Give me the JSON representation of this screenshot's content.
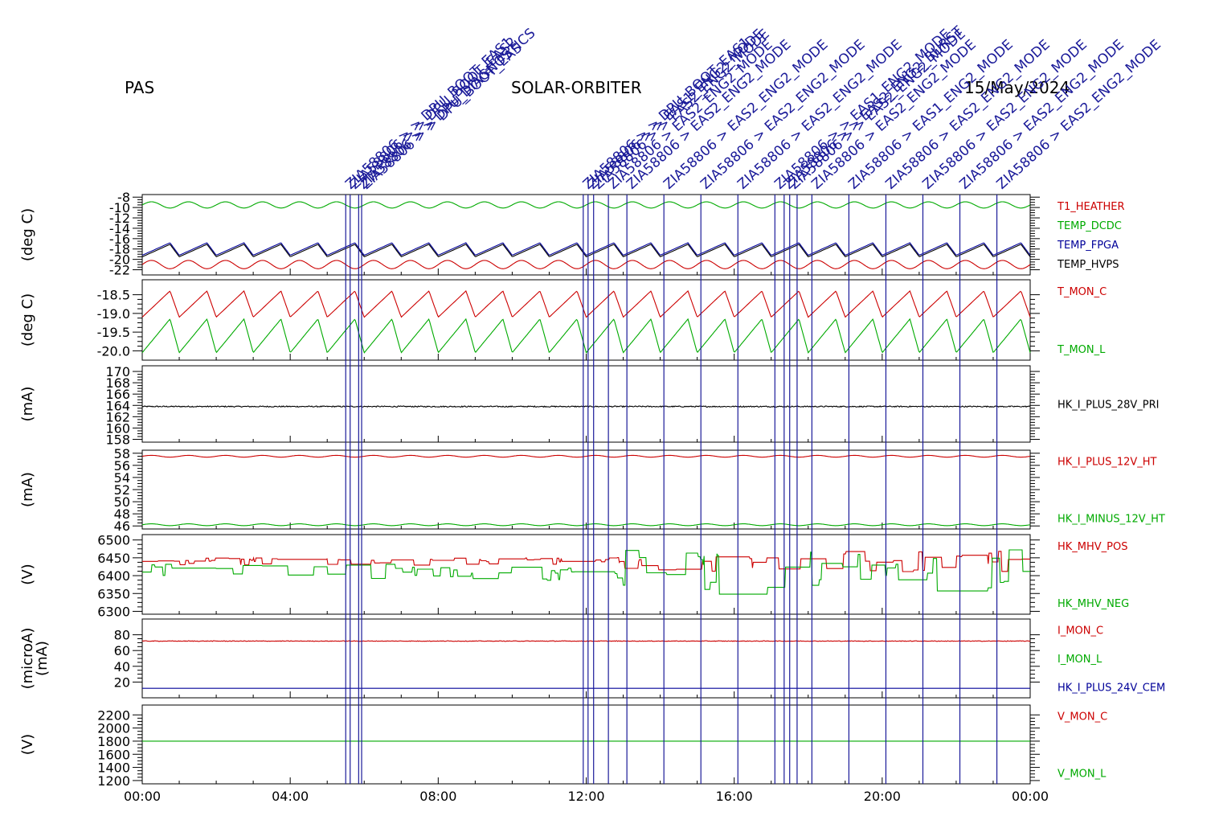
{
  "header": {
    "left": "PAS",
    "center": "SOLAR-ORBITER",
    "right": "15/May/2024"
  },
  "chart_data": {
    "type": "line",
    "x_ticks": [
      "00:00",
      "04:00",
      "08:00",
      "12:00",
      "16:00",
      "20:00",
      "00:00"
    ],
    "x_range_hours": [
      0,
      24
    ],
    "panels": [
      {
        "ylabel": "(deg C)",
        "ylim": [
          -23,
          -7.5
        ],
        "ticks": [
          "-8",
          "-10",
          "-12",
          "-14",
          "-16",
          "-18",
          "-20",
          "-22"
        ],
        "tick_values": [
          -8,
          -10,
          -12,
          -14,
          -16,
          -18,
          -20,
          -22
        ],
        "series": [
          {
            "name": "T1_HEATHER",
            "color": "#cc0000",
            "base": -21,
            "amp": 0.8,
            "period_h": 1.0,
            "shape": "sine"
          },
          {
            "name": "TEMP_DCDC",
            "color": "#00aa00",
            "base": -9.5,
            "amp": 0.6,
            "period_h": 1.0,
            "shape": "sine"
          },
          {
            "name": "TEMP_FPGA",
            "color": "#000099",
            "base": -18,
            "amp": 1.2,
            "period_h": 1.0,
            "shape": "saw"
          },
          {
            "name": "TEMP_HVPS",
            "color": "#000000",
            "base": -18.3,
            "amp": 1.2,
            "period_h": 1.0,
            "shape": "saw"
          }
        ]
      },
      {
        "ylabel": "(deg C)",
        "ylim": [
          -20.25,
          -18.1
        ],
        "ticks": [
          "-18.5",
          "-19.0",
          "-19.5",
          "-20.0"
        ],
        "tick_values": [
          -18.5,
          -19.0,
          -19.5,
          -20.0
        ],
        "series": [
          {
            "name": "T_MON_C",
            "color": "#cc0000",
            "base": -18.75,
            "amp": 0.35,
            "period_h": 1.0,
            "shape": "saw"
          },
          {
            "name": "T_MON_L",
            "color": "#00aa00",
            "base": -19.6,
            "amp": 0.45,
            "period_h": 1.0,
            "shape": "saw"
          }
        ]
      },
      {
        "ylabel": "(mA)",
        "ylim": [
          157.5,
          171
        ],
        "ticks": [
          "170",
          "168",
          "166",
          "164",
          "162",
          "160",
          "158"
        ],
        "tick_values": [
          170,
          168,
          166,
          164,
          162,
          160,
          158
        ],
        "series": [
          {
            "name": "HK_I_PLUS_28V_PRI",
            "color": "#000000",
            "base": 163.8,
            "amp": 0.1,
            "period_h": 0.3,
            "shape": "noise"
          }
        ]
      },
      {
        "ylabel": "(mA)",
        "ylim": [
          45.5,
          58.5
        ],
        "ticks": [
          "58",
          "56",
          "54",
          "52",
          "50",
          "48",
          "46"
        ],
        "tick_values": [
          58,
          56,
          54,
          52,
          50,
          48,
          46
        ],
        "series": [
          {
            "name": "HK_I_PLUS_12V_HT",
            "color": "#cc0000",
            "base": 57.5,
            "amp": 0.15,
            "period_h": 1.0,
            "shape": "sine"
          },
          {
            "name": "HK_I_MINUS_12V_HT",
            "color": "#00aa00",
            "base": 46.2,
            "amp": 0.15,
            "period_h": 1.0,
            "shape": "sine"
          }
        ]
      },
      {
        "ylabel": "(V)",
        "ylim": [
          6292,
          6515
        ],
        "ticks": [
          "6500",
          "6450",
          "6400",
          "6350",
          "6300"
        ],
        "tick_values": [
          6500,
          6450,
          6400,
          6350,
          6300
        ],
        "series": [
          {
            "name": "HK_MHV_POS",
            "color": "#cc0000",
            "base": 6440,
            "amp": 18,
            "period_h": 0.2,
            "shape": "steps"
          },
          {
            "name": "HK_MHV_NEG",
            "color": "#00aa00",
            "base": 6410,
            "amp": 40,
            "period_h": 0.2,
            "shape": "steps"
          }
        ]
      },
      {
        "ylabel": "(microA)",
        "ylabel2": "(mA)",
        "ylim": [
          0,
          100
        ],
        "ticks": [
          "80",
          "60",
          "40",
          "20"
        ],
        "tick_values": [
          80,
          60,
          40,
          20
        ],
        "series": [
          {
            "name": "I_MON_C",
            "color": "#cc0000",
            "base": 72,
            "amp": 0.4,
            "period_h": 0.5,
            "shape": "noise"
          },
          {
            "name": "I_MON_L",
            "color": "#00aa00",
            "base": null,
            "amp": 0,
            "period_h": 1,
            "shape": "none"
          },
          {
            "name": "HK_I_PLUS_24V_CEM",
            "color": "#000099",
            "base": 12,
            "amp": 0,
            "period_h": 1,
            "shape": "flat"
          }
        ]
      },
      {
        "ylabel": "(V)",
        "ylim": [
          1150,
          2350
        ],
        "ticks": [
          "2200",
          "2000",
          "1800",
          "1600",
          "1400",
          "1200"
        ],
        "tick_values": [
          2200,
          2000,
          1800,
          1600,
          1400,
          1200
        ],
        "series": [
          {
            "name": "V_MON_C",
            "color": "#cc0000",
            "base": null,
            "amp": 0,
            "period_h": 1,
            "shape": "none"
          },
          {
            "name": "V_MON_L",
            "color": "#00aa00",
            "base": 1800,
            "amp": 0,
            "period_h": 1,
            "shape": "flat"
          }
        ]
      }
    ],
    "event_lines_hours": [
      5.5,
      5.62,
      5.85,
      5.93,
      11.92,
      12.05,
      12.2,
      12.6,
      13.1,
      14.1,
      15.1,
      16.1,
      17.1,
      17.35,
      17.5,
      17.7,
      18.1,
      19.1,
      20.1,
      21.1,
      22.1,
      23.1
    ],
    "event_labels": [
      {
        "hour": 5.5,
        "text": "ZIA58806 > > DPU_BOOT_EAS1"
      },
      {
        "hour": 5.62,
        "text": "ZIA58806 > > DPU_BOOT_EAS2"
      },
      {
        "hour": 5.85,
        "text": "ZIA58806 > > DPU_DIAGNOSTICS"
      },
      {
        "hour": 5.93,
        "text": "ZIA58806 > > DPU_BOOT_EAS"
      },
      {
        "hour": 11.92,
        "text": "ZIA58806 > > DPU_BOOT_EAS1"
      },
      {
        "hour": 12.05,
        "text": "ZIA58806 > > EAS1_ENG2_MODE"
      },
      {
        "hour": 12.2,
        "text": "ZIA58806 > > EAS2_ENG2_MODE"
      },
      {
        "hour": 12.6,
        "text": "ZIA58806 > EAS2_ENG2_MODE"
      },
      {
        "hour": 13.1,
        "text": "ZIA58806 > EAS2_ENG2_MODE"
      },
      {
        "hour": 14.1,
        "text": "ZIA58806 > EAS2_ENG2_MODE"
      },
      {
        "hour": 15.1,
        "text": "ZIA58806 > EAS2_ENG2_MODE"
      },
      {
        "hour": 16.1,
        "text": "ZIA58806 > EAS2_ENG2_MODE"
      },
      {
        "hour": 17.1,
        "text": "ZIA58806 > > EAS1_ENG2_MODE"
      },
      {
        "hour": 17.35,
        "text": "ZIA58806 > > EAS2_ENG2_BURST"
      },
      {
        "hour": 17.5,
        "text": "ZIA58806 > > EAS2_ENG2_MODE"
      },
      {
        "hour": 18.1,
        "text": "ZIA58806 > EAS2_ENG2_MODE"
      },
      {
        "hour": 19.1,
        "text": "ZIA58806 > EAS1_ENG2_MODE"
      },
      {
        "hour": 20.1,
        "text": "ZIA58806 > EAS2_ENG2_MODE"
      },
      {
        "hour": 21.1,
        "text": "ZIA58806 > EAS2_ENG2_MODE"
      },
      {
        "hour": 22.1,
        "text": "ZIA58806 > EAS2_ENG2_MODE"
      },
      {
        "hour": 23.1,
        "text": "ZIA58806 > EAS2_ENG2_MODE"
      }
    ]
  }
}
